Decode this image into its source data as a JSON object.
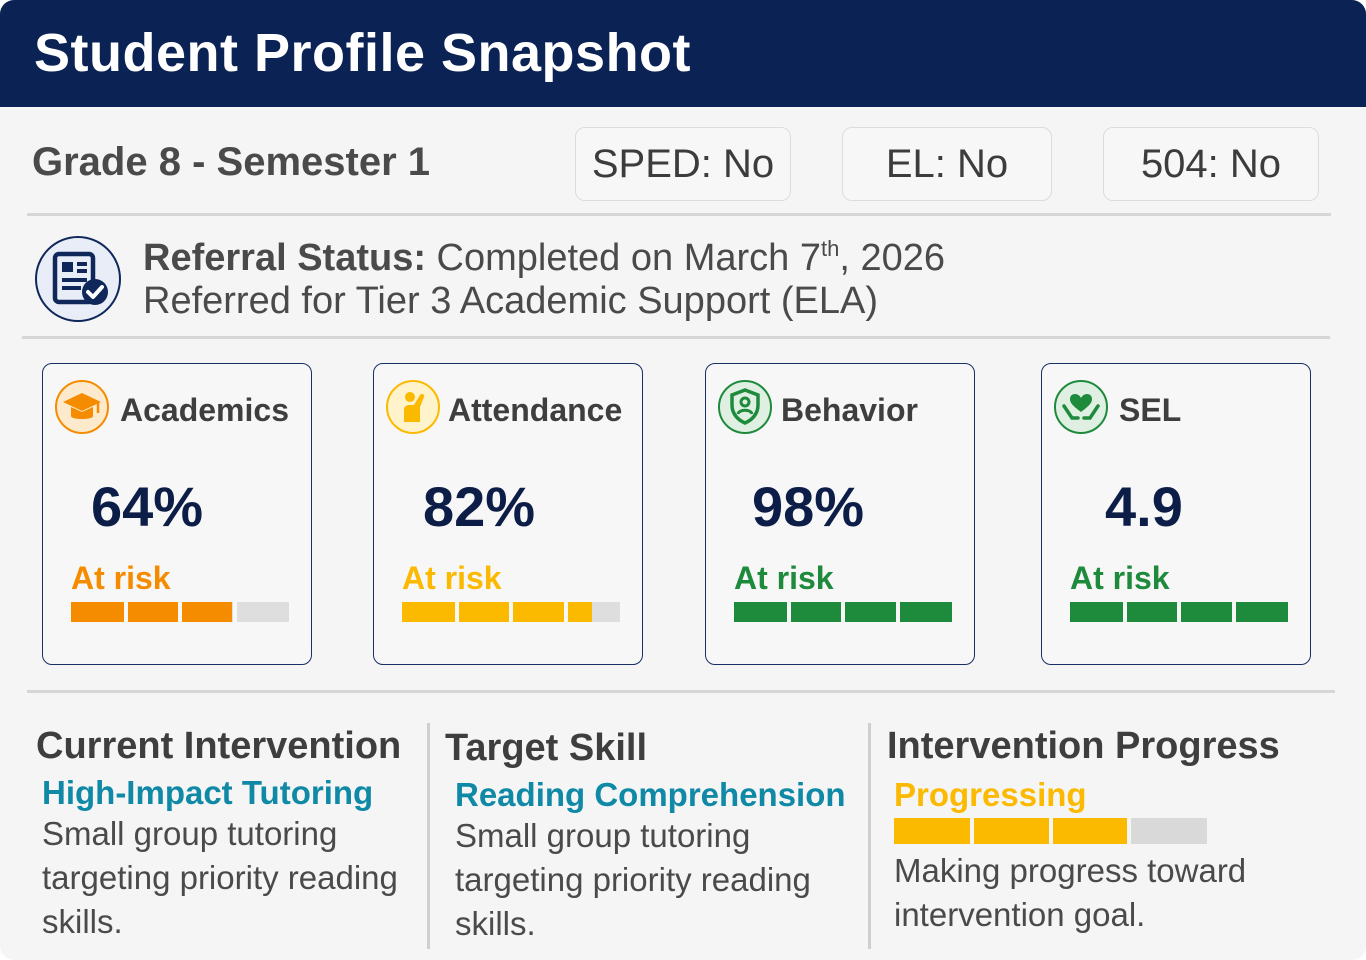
{
  "header": {
    "title": "Student Profile Snapshot"
  },
  "profile": {
    "grade_label": "Grade 8 - Semester 1",
    "flags": {
      "sped": "SPED: No",
      "el": "EL: No",
      "five04": "504: No"
    }
  },
  "referral": {
    "icon": "document-check-icon",
    "label": "Referral Status:",
    "date_text": "Completed on March 7",
    "date_suffix": "th",
    "year_text": ", 2026",
    "detail": "Referred for Tier 3 Academic Support (ELA)"
  },
  "metrics": [
    {
      "key": "academics",
      "icon": "graduation-cap-icon",
      "title": "Academics",
      "value": "64%",
      "status": "At risk",
      "status_color": "#f58c00",
      "level": 0.74,
      "bar_color": "#f58c00"
    },
    {
      "key": "attendance",
      "icon": "raised-hand-icon",
      "title": "Attendance",
      "value": "82%",
      "status": "At risk",
      "status_color": "#fbb900",
      "level": 0.87,
      "bar_color": "#fbb900"
    },
    {
      "key": "behavior",
      "icon": "shield-person-icon",
      "title": "Behavior",
      "value": "98%",
      "status": "At risk",
      "status_color": "#1e8a3c",
      "level": 1.0,
      "bar_color": "#1e8a3c"
    },
    {
      "key": "sel",
      "icon": "heart-hands-icon",
      "title": "SEL",
      "value": "4.9",
      "status": "At risk",
      "status_color": "#1e8a3c",
      "level": 1.0,
      "bar_color": "#1e8a3c"
    }
  ],
  "intervention": {
    "current": {
      "heading": "Current Intervention",
      "name": "High-Impact Tutoring",
      "description": "Small group tutoring targeting priority reading skills."
    },
    "target": {
      "heading": "Target Skill",
      "name": "Reading Comprehension",
      "description": "Small group tutoring targeting priority reading skills."
    },
    "progress": {
      "heading": "Intervention Progress",
      "status": "Progressing",
      "status_color": "#fbb900",
      "level": 0.75,
      "description": "Making progress toward intervention goal."
    }
  },
  "colors": {
    "header_bg": "#0b2254",
    "accent_teal": "#0f89a6",
    "value_navy": "#0c1e47"
  }
}
